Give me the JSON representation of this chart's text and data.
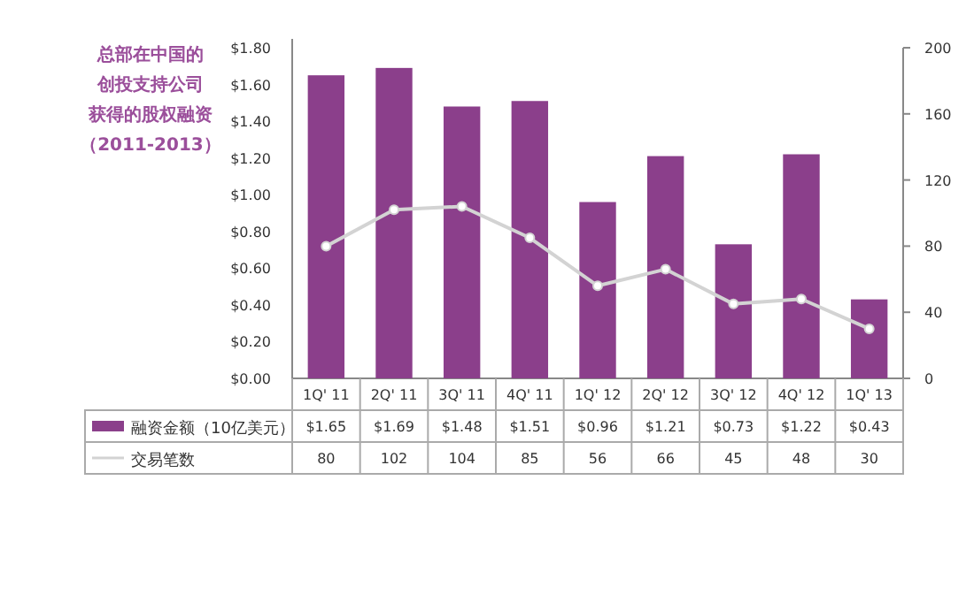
{
  "chart_data": {
    "type": "bar",
    "title": "总部在中国的创投支持公司获得的股权融资",
    "subtitle": "（2011-2013）",
    "categories": [
      "1Q' 11",
      "2Q' 11",
      "3Q' 11",
      "4Q' 11",
      "1Q' 12",
      "2Q' 12",
      "3Q' 12",
      "4Q' 12",
      "1Q' 13"
    ],
    "series": [
      {
        "name": "融资金额（10亿美元）",
        "color": "#8b3f8b",
        "values": [
          1.65,
          1.69,
          1.48,
          1.51,
          0.96,
          1.21,
          0.73,
          1.22,
          0.43
        ],
        "value_labels": [
          "$1.65",
          "$1.69",
          "$1.48",
          "$1.51",
          "$0.96",
          "$1.21",
          "$0.73",
          "$1.22",
          "$0.43"
        ]
      },
      {
        "name": "交易笔数",
        "type": "line",
        "axis": "y2",
        "color": "#d3d3d3",
        "marker": "circle",
        "values": [
          80,
          102,
          104,
          85,
          56,
          66,
          45,
          48,
          30
        ],
        "value_labels": [
          "80",
          "102",
          "104",
          "85",
          "56",
          "66",
          "45",
          "48",
          "30"
        ]
      }
    ],
    "ylim": [
      0,
      1.8
    ],
    "yticks": [
      {
        "value": 0,
        "label": "$0.00"
      },
      {
        "value": 0.2,
        "label": "$0.20"
      },
      {
        "value": 0.4,
        "label": "$0.40"
      },
      {
        "value": 0.6,
        "label": "$0.60"
      },
      {
        "value": 0.8,
        "label": "$0.80"
      },
      {
        "value": 1,
        "label": "$1.00"
      },
      {
        "value": 1.2,
        "label": "$1.20"
      },
      {
        "value": 1.4,
        "label": "$1.40"
      },
      {
        "value": 1.6,
        "label": "$1.60"
      },
      {
        "value": 1.8,
        "label": "$1.80"
      }
    ],
    "y2lim": [
      0,
      200
    ],
    "y2ticks": [
      0,
      40,
      80,
      120,
      160,
      200
    ],
    "legend": "bottom"
  }
}
